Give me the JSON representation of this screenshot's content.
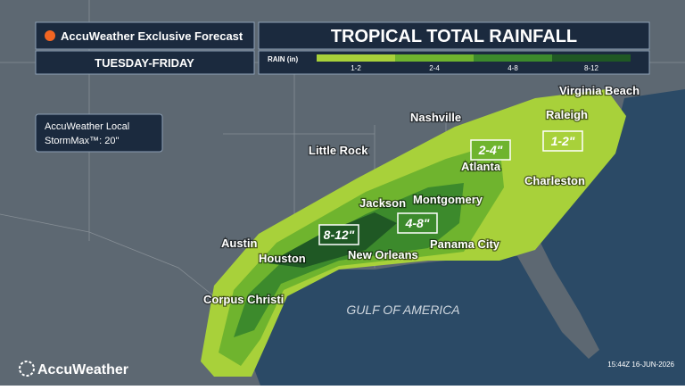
{
  "header": {
    "brand": "AccuWeather Exclusive Forecast",
    "title": "TROPICAL TOTAL RAINFALL",
    "period": "TUESDAY-FRIDAY"
  },
  "legend": {
    "title": "RAIN (in)",
    "items": [
      {
        "label": "1-2",
        "color": "#a8d13a"
      },
      {
        "label": "2-4",
        "color": "#6fb42e"
      },
      {
        "label": "4-8",
        "color": "#3c8a2c"
      },
      {
        "label": "8-12",
        "color": "#1f5824"
      }
    ]
  },
  "stormmax": {
    "line1": "AccuWeather Local",
    "line2": "StormMax™: 20\""
  },
  "zone_labels": [
    "1-2\"",
    "2-4\"",
    "4-8\"",
    "8-12\""
  ],
  "cities": [
    "Virginia Beach",
    "Raleigh",
    "Nashville",
    "Little Rock",
    "Atlanta",
    "Charleston",
    "Jackson",
    "Montgomery",
    "Austin",
    "Houston",
    "New Orleans",
    "Panama City",
    "Corpus Christi"
  ],
  "water_label": "GULF OF AMERICA",
  "footer": {
    "logo": "AccuWeather",
    "timestamp": "15:44Z 16-JUN-2026"
  }
}
